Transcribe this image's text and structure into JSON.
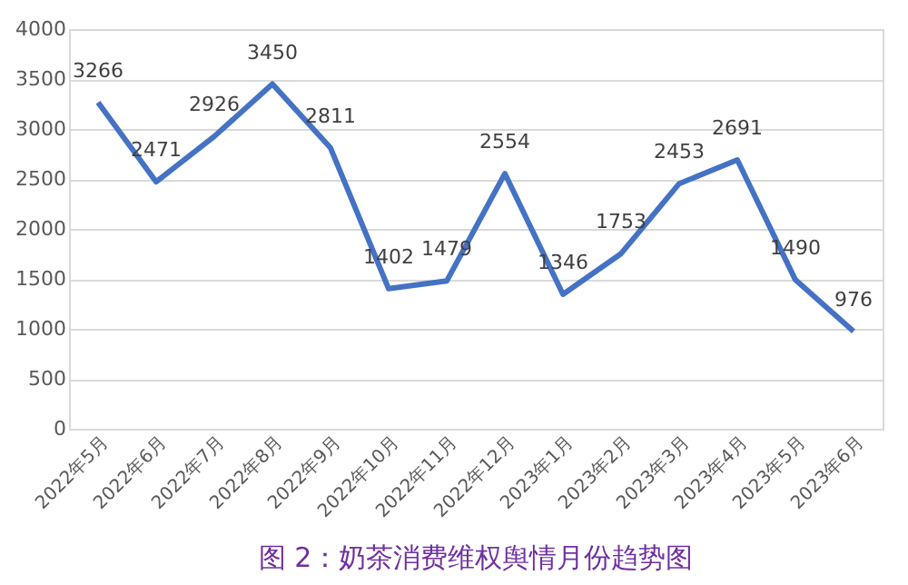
{
  "chart_data": {
    "type": "line",
    "title": "图 2：奶茶消费维权舆情月份趋势图",
    "categories": [
      "2022年5月",
      "2022年6月",
      "2022年7月",
      "2022年8月",
      "2022年9月",
      "2022年10月",
      "2022年11月",
      "2022年12月",
      "2023年1月",
      "2023年2月",
      "2023年3月",
      "2023年4月",
      "2023年5月",
      "2023年6月"
    ],
    "series": [
      {
        "color": "#4472c4",
        "values": [
          3266,
          2471,
          2926,
          3450,
          2811,
          1402,
          1479,
          2554,
          1346,
          1753,
          2453,
          2691,
          1490,
          976
        ]
      }
    ],
    "ylim": [
      0,
      4000
    ],
    "yticks": [
      0,
      500,
      1000,
      1500,
      2000,
      2500,
      3000,
      3500,
      4000
    ],
    "grid": "y",
    "data_labels": true,
    "legend": false,
    "marker": "none",
    "line_style": "solid"
  }
}
